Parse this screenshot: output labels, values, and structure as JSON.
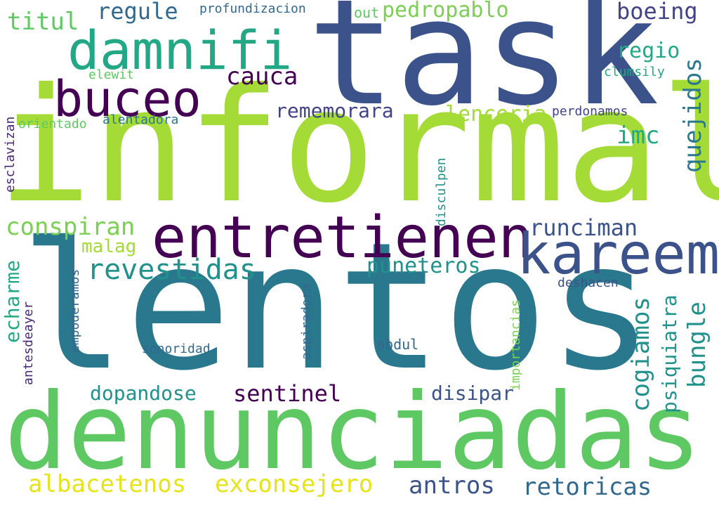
{
  "palette": {
    "background": "#ffffff",
    "yellow_green": "#a5db36",
    "green": "#5ec962",
    "light_green": "#7ad151",
    "yellow": "#e6e419",
    "teal": "#22a884",
    "teal_dark": "#21918c",
    "blue_teal": "#2a788e",
    "steel_blue": "#31688e",
    "indigo": "#3b528b",
    "indigo_dark": "#414487",
    "purple": "#440154",
    "purple_dark": "#482878"
  },
  "words": [
    "informal",
    "lentos",
    "task",
    "denunciadas",
    "entretienen",
    "damnifi",
    "kareem",
    "buceo",
    "revestidas",
    "conspiran",
    "albacetenos",
    "exconsejero",
    "retoricas",
    "antros",
    "runciman",
    "regule",
    "pedropablo",
    "boeing",
    "titul",
    "cauca",
    "puneteros",
    "sentinel",
    "dopandose",
    "cogiamos",
    "bungle",
    "quejidos",
    "rememorara",
    "lenceria",
    "imc",
    "regio",
    "psiquiatra",
    "echarme",
    "disipar",
    "malag",
    "profundizacion",
    "out",
    "elewit",
    "clumsily",
    "orientado",
    "alentadora",
    "perdonamos",
    "esclavizan",
    "disculpen",
    "deshacen",
    "empoderamos",
    "antesdeayer",
    "aspiradora",
    "importancias",
    "sonoridad",
    "abdul"
  ]
}
